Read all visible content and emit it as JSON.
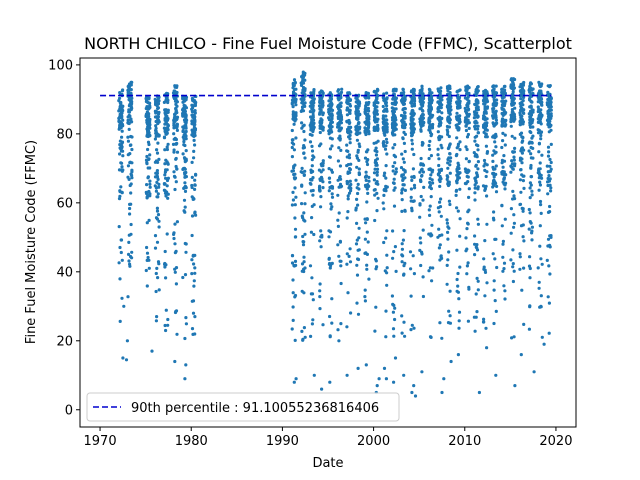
{
  "chart_data": {
    "type": "scatter",
    "title": "NORTH CHILCO - Fine Fuel Moisture Code (FFMC), Scatterplot",
    "xlabel": "Date",
    "ylabel": "Fine Fuel Moisture Code (FFMC)",
    "xlim": [
      1967.8,
      2022.2
    ],
    "ylim": [
      -5,
      102
    ],
    "x_ticks": [
      1970,
      1980,
      1990,
      2000,
      2010,
      2020
    ],
    "y_ticks": [
      0,
      20,
      40,
      60,
      80,
      100
    ],
    "grid": false,
    "legend_position": "lower-left",
    "point_color": "#1f77b4",
    "percentile_line": {
      "label": "90th percentile : 91.10055236816406",
      "value": 91.10055236816406,
      "x_start": 1970,
      "x_end": 2019.5,
      "color": "#0000cd",
      "style": "dashed"
    },
    "series": [
      {
        "seasons": [
          1972,
          1973,
          1975,
          1976,
          1977,
          1978,
          1979,
          1980,
          1991,
          1992,
          1993,
          1994,
          1995,
          1996,
          1997,
          1998,
          1999,
          2000,
          2001,
          2002,
          2003,
          2004,
          2005,
          2006,
          2007,
          2008,
          2009,
          2010,
          2011,
          2012,
          2013,
          2014,
          2015,
          2016,
          2017,
          2018,
          2019
        ],
        "season_span": 0.45,
        "season_max": [
          93,
          95,
          91,
          91,
          92,
          94,
          91,
          91,
          96,
          98,
          93,
          93,
          92,
          93,
          92,
          92,
          92,
          93,
          92,
          93,
          93,
          93,
          94,
          93,
          94,
          94,
          93,
          94,
          94,
          93,
          94,
          94,
          96,
          95,
          95,
          95,
          94
        ],
        "points_per_season": 95,
        "points": [
          [
            1972.5,
            15
          ],
          [
            1972.9,
            14.5
          ],
          [
            1973.0,
            20
          ],
          [
            1972.6,
            30
          ],
          [
            1975.7,
            17
          ],
          [
            1976.2,
            27
          ],
          [
            1978.2,
            14
          ],
          [
            1979.3,
            9
          ],
          [
            1979.4,
            13
          ],
          [
            1980.4,
            27
          ],
          [
            1991.3,
            8
          ],
          [
            1991.5,
            9
          ],
          [
            1992.5,
            21
          ],
          [
            1993.5,
            10
          ],
          [
            1994.3,
            6
          ],
          [
            1995.2,
            8
          ],
          [
            1996.2,
            20
          ],
          [
            1997.1,
            10
          ],
          [
            1998.3,
            12
          ],
          [
            1999.2,
            13
          ],
          [
            2000.3,
            5
          ],
          [
            2000.4,
            7
          ],
          [
            2000.6,
            9
          ],
          [
            2001.2,
            12
          ],
          [
            2001.4,
            9
          ],
          [
            2002.2,
            8
          ],
          [
            2002.4,
            15
          ],
          [
            2003.3,
            10
          ],
          [
            2004.2,
            5
          ],
          [
            2004.4,
            7
          ],
          [
            2004.6,
            4
          ],
          [
            2005.3,
            11
          ],
          [
            2007.5,
            5
          ],
          [
            2007.7,
            9
          ],
          [
            2008.5,
            14
          ],
          [
            2009.3,
            16
          ],
          [
            2011.6,
            5
          ],
          [
            2012.4,
            18
          ],
          [
            2013.4,
            10
          ],
          [
            2015.5,
            7
          ],
          [
            2016.2,
            16
          ],
          [
            2017.6,
            11
          ],
          [
            2018.5,
            21
          ],
          [
            2018.7,
            19
          ]
        ]
      }
    ]
  }
}
